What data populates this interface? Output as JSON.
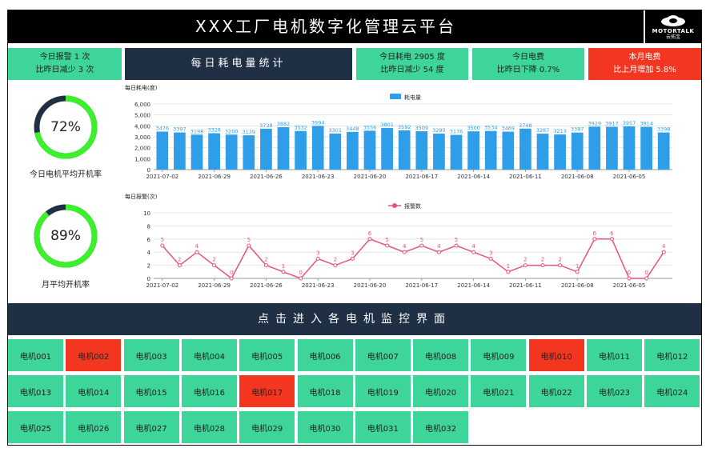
{
  "header": {
    "title": "XXX工厂电机数字化管理云平台",
    "logo_text": "MOTORTALK",
    "logo_subtext": "云拓宝"
  },
  "stats": {
    "alarm_today": "今日报警 1 次",
    "alarm_compare": "比昨日减少 3 次",
    "section_title": "每日耗电量统计",
    "power_today": "今日耗电 2905 度",
    "power_compare": "比昨日减少 54 度",
    "fee_today": "今日电费",
    "fee_compare": "比昨日下降 0.7%",
    "fee_month": "本月电费",
    "fee_month_compare": "比上月增加 5.8%"
  },
  "gauges": [
    {
      "value": "72%",
      "fraction": 0.72,
      "label": "今日电机平均开机率"
    },
    {
      "value": "89%",
      "fraction": 0.89,
      "label": "月平均开机率"
    }
  ],
  "colors": {
    "green": "#3dd59a",
    "red": "#f3361f",
    "dark": "#1f3044",
    "bar_blue": "#2e9ee8",
    "line_pink": "#e8527f",
    "ring_green": "#3cf02c",
    "ring_dark": "#1f3044"
  },
  "chart_data": [
    {
      "type": "bar",
      "ylabel": "每日耗电(度)",
      "legend": "耗电量",
      "legend_position": "top-center",
      "ylim": [
        0,
        6000
      ],
      "yticks": [
        "0",
        "1,000",
        "2,000",
        "3,000",
        "4,000",
        "5,000",
        "6,000"
      ],
      "xtick_labels": [
        "2021-07-02",
        "2021-06-29",
        "2021-06-26",
        "2021-06-23",
        "2021-06-20",
        "2021-06-17",
        "2021-06-14",
        "2021-06-11",
        "2021-06-08",
        "2021-06-05"
      ],
      "values": [
        3476,
        3397,
        3198,
        3328,
        3200,
        3139,
        3738,
        3882,
        3532,
        3994,
        3301,
        3448,
        3556,
        3801,
        3592,
        3509,
        3290,
        3176,
        3500,
        3534,
        3469,
        3748,
        3287,
        3213,
        3387,
        3929,
        3917,
        3957,
        3914,
        3398
      ]
    },
    {
      "type": "line",
      "ylabel": "每日报警(次)",
      "legend": "报警数",
      "legend_position": "top-center",
      "ylim": [
        0,
        10
      ],
      "yticks": [
        "0",
        "2",
        "4",
        "6",
        "8",
        "10"
      ],
      "xtick_labels": [
        "2021-07-02",
        "2021-06-29",
        "2021-06-26",
        "2021-06-23",
        "2021-06-20",
        "2021-06-17",
        "2021-06-14",
        "2021-06-11",
        "2021-06-08",
        "2021-06-05"
      ],
      "values": [
        5,
        2,
        4,
        2,
        0,
        5,
        2,
        1,
        0,
        3,
        2,
        3,
        6,
        5,
        4,
        5,
        4,
        5,
        4,
        3,
        1,
        2,
        2,
        2,
        1,
        6,
        6,
        0,
        0,
        4
      ]
    }
  ],
  "motors": {
    "header": "点击进入各电机监控界面",
    "items": [
      {
        "name": "电机001",
        "status": "ok"
      },
      {
        "name": "电机002",
        "status": "alarm"
      },
      {
        "name": "电机003",
        "status": "ok"
      },
      {
        "name": "电机004",
        "status": "ok"
      },
      {
        "name": "电机005",
        "status": "ok"
      },
      {
        "name": "电机006",
        "status": "ok"
      },
      {
        "name": "电机007",
        "status": "ok"
      },
      {
        "name": "电机008",
        "status": "ok"
      },
      {
        "name": "电机009",
        "status": "ok"
      },
      {
        "name": "电机010",
        "status": "alarm"
      },
      {
        "name": "电机011",
        "status": "ok"
      },
      {
        "name": "电机012",
        "status": "ok"
      },
      {
        "name": "电机013",
        "status": "ok"
      },
      {
        "name": "电机014",
        "status": "ok"
      },
      {
        "name": "电机015",
        "status": "ok"
      },
      {
        "name": "电机016",
        "status": "ok"
      },
      {
        "name": "电机017",
        "status": "alarm"
      },
      {
        "name": "电机018",
        "status": "ok"
      },
      {
        "name": "电机019",
        "status": "ok"
      },
      {
        "name": "电机020",
        "status": "ok"
      },
      {
        "name": "电机021",
        "status": "ok"
      },
      {
        "name": "电机022",
        "status": "ok"
      },
      {
        "name": "电机023",
        "status": "ok"
      },
      {
        "name": "电机024",
        "status": "ok"
      },
      {
        "name": "电机025",
        "status": "ok"
      },
      {
        "name": "电机026",
        "status": "ok"
      },
      {
        "name": "电机027",
        "status": "ok"
      },
      {
        "name": "电机028",
        "status": "ok"
      },
      {
        "name": "电机029",
        "status": "ok"
      },
      {
        "name": "电机030",
        "status": "ok"
      },
      {
        "name": "电机031",
        "status": "ok"
      },
      {
        "name": "电机032",
        "status": "ok"
      }
    ]
  }
}
